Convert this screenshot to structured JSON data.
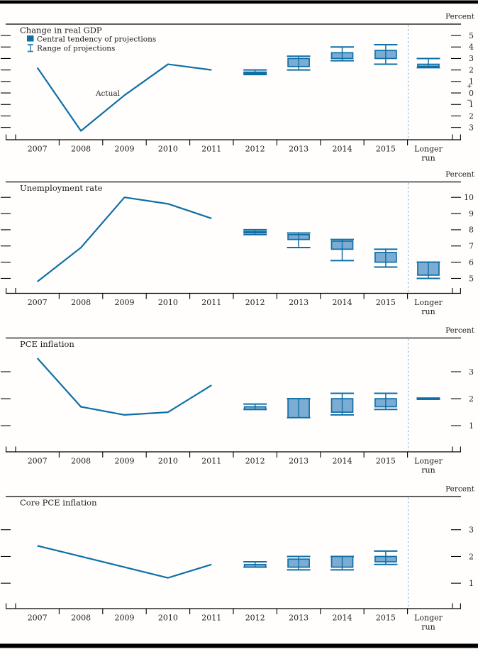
{
  "figure": {
    "unit_label": "Percent",
    "actual_label": "Actual",
    "plus_label": "+",
    "minus_label": "−",
    "legend": [
      {
        "type": "box",
        "label": "Central tendency of projections"
      },
      {
        "type": "range",
        "label": "Range of projections"
      }
    ],
    "x_categories": [
      "2007",
      "2008",
      "2009",
      "2010",
      "2011",
      "2012",
      "2013",
      "2014",
      "2015",
      "Longer run"
    ],
    "longer_run_lines": [
      "Longer",
      "run"
    ],
    "colors": {
      "line_dark_blue": "#0e6fa6",
      "box_fill_blue": "#7cacd3",
      "dashed_separator_blue": "#8cb6da",
      "text": "#1c1c1c",
      "frame_black": "#000000"
    }
  },
  "chart_data": [
    {
      "type": "line",
      "title": "Change in real GDP",
      "ylabel": "Percent",
      "ylim": [
        -4.07,
        5.99
      ],
      "yticks": [
        5,
        4,
        3,
        2,
        1,
        0,
        -1,
        -2,
        -3
      ],
      "ytick_labels": [
        "5",
        "4",
        "3",
        "2",
        "1",
        "0",
        "1",
        "2",
        "3"
      ],
      "plus_minus_zero": true,
      "show_legend": true,
      "show_actual_label": true,
      "actual": {
        "years": [
          "2007",
          "2008",
          "2009",
          "2010",
          "2011"
        ],
        "values": [
          2.2,
          -3.3,
          -0.2,
          2.5,
          2.0
        ]
      },
      "projections": [
        {
          "year": "2012",
          "central_tendency": [
            1.7,
            1.8
          ],
          "range": [
            1.6,
            2.0
          ]
        },
        {
          "year": "2013",
          "central_tendency": [
            2.3,
            3.0
          ],
          "range": [
            2.0,
            3.2
          ]
        },
        {
          "year": "2014",
          "central_tendency": [
            3.0,
            3.5
          ],
          "range": [
            2.8,
            4.0
          ]
        },
        {
          "year": "2015",
          "central_tendency": [
            3.0,
            3.7
          ],
          "range": [
            2.5,
            4.2
          ]
        }
      ],
      "longer_run": {
        "central_tendency": [
          2.3,
          2.5
        ],
        "range": [
          2.2,
          3.0
        ]
      }
    },
    {
      "type": "line",
      "title": "Unemployment rate",
      "ylabel": "Percent",
      "ylim": [
        4.08,
        10.95
      ],
      "yticks": [
        10,
        9,
        8,
        7,
        6,
        5
      ],
      "ytick_labels": [
        "10",
        "9",
        "8",
        "7",
        "6",
        "5"
      ],
      "plus_minus_zero": false,
      "show_legend": false,
      "show_actual_label": false,
      "actual": {
        "years": [
          "2007",
          "2008",
          "2009",
          "2010",
          "2011"
        ],
        "values": [
          4.8,
          6.9,
          10.0,
          9.6,
          8.7
        ]
      },
      "projections": [
        {
          "year": "2012",
          "central_tendency": [
            7.8,
            7.9
          ],
          "range": [
            7.7,
            8.0
          ]
        },
        {
          "year": "2013",
          "central_tendency": [
            7.4,
            7.7
          ],
          "range": [
            6.9,
            7.8
          ]
        },
        {
          "year": "2014",
          "central_tendency": [
            6.8,
            7.3
          ],
          "range": [
            6.1,
            7.4
          ]
        },
        {
          "year": "2015",
          "central_tendency": [
            6.0,
            6.6
          ],
          "range": [
            5.7,
            6.8
          ]
        }
      ],
      "longer_run": {
        "central_tendency": [
          5.2,
          6.0
        ],
        "range": [
          5.0,
          6.0
        ]
      }
    },
    {
      "type": "line",
      "title": "PCE inflation",
      "ylabel": "Percent",
      "ylim": [
        0.03,
        4.25
      ],
      "yticks": [
        3,
        2,
        1
      ],
      "ytick_labels": [
        "3",
        "2",
        "1"
      ],
      "plus_minus_zero": false,
      "show_legend": false,
      "show_actual_label": false,
      "actual": {
        "years": [
          "2007",
          "2008",
          "2009",
          "2010",
          "2011"
        ],
        "values": [
          3.5,
          1.7,
          1.4,
          1.5,
          2.5
        ]
      },
      "projections": [
        {
          "year": "2012",
          "central_tendency": [
            1.6,
            1.7
          ],
          "range": [
            1.6,
            1.8
          ]
        },
        {
          "year": "2013",
          "central_tendency": [
            1.3,
            2.0
          ],
          "range": [
            1.3,
            2.0
          ]
        },
        {
          "year": "2014",
          "central_tendency": [
            1.5,
            2.0
          ],
          "range": [
            1.4,
            2.2
          ]
        },
        {
          "year": "2015",
          "central_tendency": [
            1.7,
            2.0
          ],
          "range": [
            1.6,
            2.2
          ]
        }
      ],
      "longer_run": {
        "central_tendency": [
          2.0,
          2.0
        ],
        "range": [
          2.0,
          2.0
        ]
      }
    },
    {
      "type": "line",
      "title": "Core PCE inflation",
      "ylabel": "Percent",
      "ylim": [
        0.05,
        4.24
      ],
      "yticks": [
        3,
        2,
        1
      ],
      "ytick_labels": [
        "3",
        "2",
        "1"
      ],
      "plus_minus_zero": false,
      "show_legend": false,
      "show_actual_label": false,
      "actual": {
        "years": [
          "2007",
          "2008",
          "2009",
          "2010",
          "2011"
        ],
        "values": [
          2.4,
          2.0,
          1.6,
          1.2,
          1.7
        ]
      },
      "projections": [
        {
          "year": "2012",
          "central_tendency": [
            1.6,
            1.7
          ],
          "range": [
            1.6,
            1.8
          ]
        },
        {
          "year": "2013",
          "central_tendency": [
            1.6,
            1.9
          ],
          "range": [
            1.5,
            2.0
          ]
        },
        {
          "year": "2014",
          "central_tendency": [
            1.6,
            2.0
          ],
          "range": [
            1.5,
            2.0
          ]
        },
        {
          "year": "2015",
          "central_tendency": [
            1.8,
            2.0
          ],
          "range": [
            1.7,
            2.2
          ]
        }
      ],
      "longer_run": null
    }
  ]
}
